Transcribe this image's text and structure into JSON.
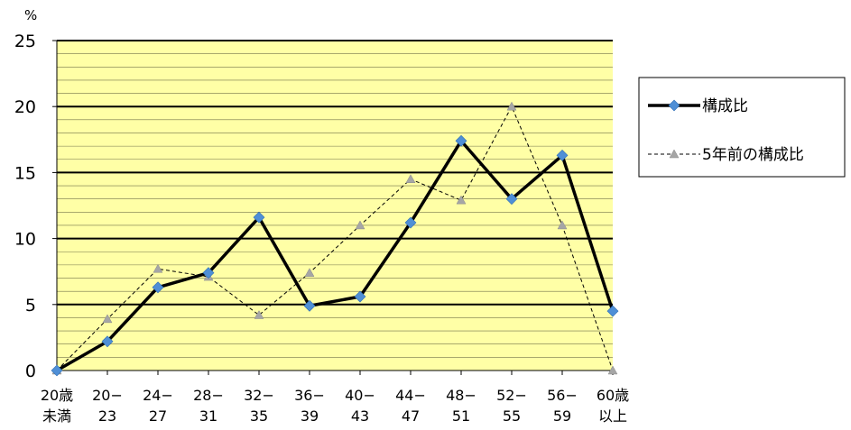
{
  "chart_data": {
    "type": "line",
    "unit_label": "%",
    "categories": [
      [
        "20歳",
        "未満"
      ],
      [
        "20−",
        "23"
      ],
      [
        "24−",
        "27"
      ],
      [
        "28−",
        "31"
      ],
      [
        "32−",
        "35"
      ],
      [
        "36−",
        "39"
      ],
      [
        "40−",
        "43"
      ],
      [
        "44−",
        "47"
      ],
      [
        "48−",
        "51"
      ],
      [
        "52−",
        "55"
      ],
      [
        "56−",
        "59"
      ],
      [
        "60歳",
        "以上"
      ]
    ],
    "yticks": [
      "0",
      "5",
      "10",
      "15",
      "20",
      "25"
    ],
    "ylim": [
      0,
      25
    ],
    "minor_grid_step": 1,
    "major_grid_step": 5,
    "plot_background": "#FFFFA6",
    "series": [
      {
        "name": "構成比",
        "values": [
          0,
          2.2,
          6.3,
          7.4,
          11.6,
          4.9,
          5.6,
          11.2,
          17.4,
          13.0,
          16.3,
          4.5
        ],
        "color": "#000000",
        "marker": "diamond",
        "marker_color": "#4F8FD6",
        "style": "solid"
      },
      {
        "name": "5年前の構成比",
        "values": [
          0,
          3.9,
          7.7,
          7.1,
          4.2,
          7.4,
          11.0,
          14.5,
          12.9,
          20.0,
          11.0,
          0
        ],
        "color": "#000000",
        "marker": "triangle",
        "marker_color": "#A6A6A6",
        "style": "dashed"
      }
    ],
    "legend_position": "right"
  }
}
